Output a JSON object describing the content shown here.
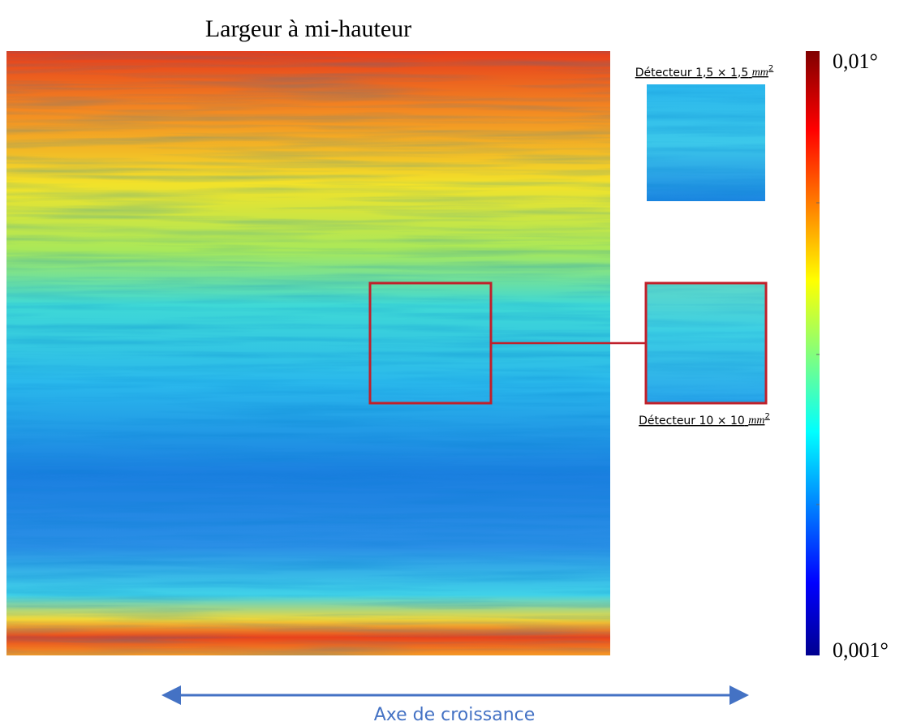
{
  "title": "Largeur à mi-hauteur",
  "colorbar": {
    "max_label": "0,01°",
    "min_label": "0,001°"
  },
  "insets": [
    {
      "label": "Détecteur 1,5 × 1,5",
      "unit": "mm",
      "exponent": "2"
    },
    {
      "label": "Détecteur 10 × 10",
      "unit": "mm",
      "exponent": "2"
    }
  ],
  "axis_label": "Axe de croissance"
}
